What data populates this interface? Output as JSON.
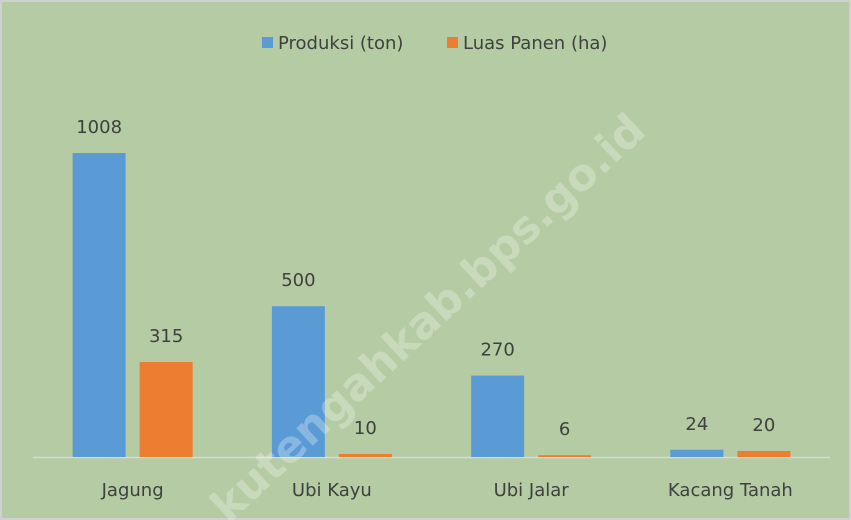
{
  "chart_data": {
    "type": "bar",
    "categories": [
      "Jagung",
      "Ubi Kayu",
      "Ubi Jalar",
      "Kacang Tanah"
    ],
    "series": [
      {
        "name": "Produksi (ton)",
        "color": "#5b9bd5",
        "values": [
          1008,
          500,
          270,
          24
        ]
      },
      {
        "name": "Luas Panen (ha)",
        "color": "#ed7d31",
        "values": [
          315,
          10,
          6,
          20
        ]
      }
    ],
    "legend": "top",
    "watermark": "kutengahkab.bps.go.id"
  }
}
